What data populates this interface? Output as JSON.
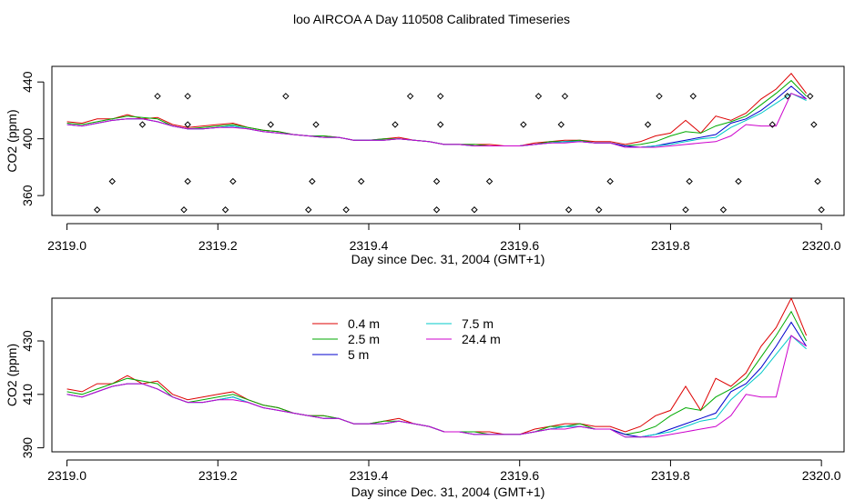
{
  "figure": {
    "title": "loo AIRCOA A  Day 110508  Calibrated Timeseries"
  },
  "chart_data": [
    {
      "type": "line",
      "title": "",
      "xlabel": "Day since Dec. 31, 2004 (GMT+1)",
      "ylabel": "CO2 (ppm)",
      "xlim": [
        2318.98,
        2320.03
      ],
      "ylim": [
        346,
        451
      ],
      "x_ticks": [
        2319.0,
        2319.2,
        2319.4,
        2319.6,
        2319.8,
        2320.0
      ],
      "x_tick_labels": [
        "2319.0",
        "2319.2",
        "2319.4",
        "2319.6",
        "2319.8",
        "2320.0"
      ],
      "y_ticks": [
        360,
        400,
        440
      ],
      "y_tick_labels": [
        "360",
        "400",
        "440"
      ],
      "grid": false,
      "legend": "none",
      "x": [
        2319.0,
        2319.02,
        2319.04,
        2319.06,
        2319.08,
        2319.1,
        2319.12,
        2319.14,
        2319.16,
        2319.18,
        2319.2,
        2319.22,
        2319.24,
        2319.26,
        2319.28,
        2319.3,
        2319.32,
        2319.34,
        2319.36,
        2319.38,
        2319.4,
        2319.42,
        2319.44,
        2319.46,
        2319.48,
        2319.5,
        2319.52,
        2319.54,
        2319.56,
        2319.58,
        2319.6,
        2319.62,
        2319.64,
        2319.66,
        2319.68,
        2319.7,
        2319.72,
        2319.74,
        2319.76,
        2319.78,
        2319.8,
        2319.82,
        2319.84,
        2319.86,
        2319.88,
        2319.9,
        2319.92,
        2319.94,
        2319.96,
        2319.98
      ],
      "series": [
        {
          "color": "#dd0000",
          "values": [
            412,
            411,
            414,
            414,
            417,
            414,
            415,
            410,
            408,
            409,
            410,
            411,
            408,
            406,
            405,
            403,
            402,
            402,
            401,
            399,
            399,
            400,
            401,
            399,
            398,
            396,
            396,
            396,
            396,
            395,
            395,
            397,
            398,
            399,
            399,
            398,
            398,
            396,
            398,
            402,
            404,
            413,
            404,
            416,
            413,
            418,
            428,
            435,
            446,
            432
          ]
        },
        {
          "color": "#00aa00",
          "values": [
            411,
            410,
            412,
            414,
            416,
            415,
            414,
            409,
            407,
            408,
            409,
            410,
            408,
            406,
            405,
            403,
            402,
            402,
            401,
            399,
            399,
            400,
            400,
            399,
            398,
            396,
            396,
            396,
            395,
            395,
            395,
            396,
            398,
            398,
            399,
            397,
            397,
            395,
            396,
            398,
            402,
            405,
            404,
            409,
            412,
            416,
            424,
            432,
            441,
            430
          ]
        },
        {
          "color": "#0000cc",
          "values": [
            410,
            409,
            411,
            413,
            414,
            414,
            412,
            409,
            407,
            407,
            408,
            409,
            407,
            405,
            404,
            403,
            402,
            401,
            401,
            399,
            399,
            399,
            400,
            399,
            398,
            396,
            396,
            395,
            395,
            395,
            395,
            396,
            397,
            398,
            398,
            397,
            397,
            395,
            394,
            395,
            397,
            399,
            401,
            403,
            411,
            414,
            420,
            428,
            437,
            428
          ]
        },
        {
          "color": "#00c8c8",
          "values": [
            410,
            409,
            411,
            413,
            414,
            414,
            412,
            409,
            407,
            407,
            408,
            409,
            407,
            405,
            404,
            403,
            402,
            401,
            401,
            399,
            399,
            399,
            400,
            399,
            398,
            396,
            396,
            395,
            395,
            395,
            395,
            396,
            397,
            398,
            398,
            397,
            397,
            394,
            394,
            395,
            396,
            398,
            400,
            401,
            408,
            413,
            418,
            425,
            432,
            427
          ]
        },
        {
          "color": "#cc00cc",
          "values": [
            410,
            409,
            411,
            413,
            414,
            414,
            412,
            409,
            407,
            407,
            408,
            408,
            407,
            405,
            404,
            403,
            402,
            401,
            401,
            399,
            399,
            399,
            400,
            399,
            398,
            396,
            396,
            395,
            395,
            395,
            395,
            396,
            397,
            397,
            398,
            397,
            397,
            394,
            394,
            394,
            395,
            396,
            397,
            398,
            402,
            410,
            409,
            409,
            432,
            428
          ]
        }
      ],
      "points": {
        "x": [
          2319.04,
          2319.06,
          2319.1,
          2319.12,
          2319.155,
          2319.16,
          2319.16,
          2319.16,
          2319.21,
          2319.22,
          2319.27,
          2319.29,
          2319.32,
          2319.325,
          2319.33,
          2319.37,
          2319.39,
          2319.435,
          2319.455,
          2319.49,
          2319.49,
          2319.495,
          2319.495,
          2319.54,
          2319.56,
          2319.605,
          2319.625,
          2319.655,
          2319.66,
          2319.665,
          2319.705,
          2319.72,
          2319.77,
          2319.785,
          2319.82,
          2319.825,
          2319.83,
          2319.87,
          2319.89,
          2319.935,
          2319.955,
          2319.985,
          2319.99,
          2319.995,
          2320.0
        ],
        "y": [
          350,
          370,
          410,
          430,
          350,
          370,
          410,
          430,
          350,
          370,
          410,
          430,
          350,
          370,
          410,
          350,
          370,
          410,
          430,
          350,
          370,
          410,
          430,
          350,
          370,
          410,
          430,
          410,
          430,
          350,
          350,
          370,
          410,
          430,
          350,
          370,
          430,
          350,
          370,
          410,
          430,
          430,
          410,
          370,
          350
        ]
      }
    },
    {
      "type": "line",
      "title": "",
      "xlabel": "Day since Dec. 31, 2004 (GMT+1)",
      "ylabel": "CO2 (ppm)",
      "xlim": [
        2318.98,
        2320.03
      ],
      "ylim": [
        388.5,
        446
      ],
      "x_ticks": [
        2319.0,
        2319.2,
        2319.4,
        2319.6,
        2319.8,
        2320.0
      ],
      "x_tick_labels": [
        "2319.0",
        "2319.2",
        "2319.4",
        "2319.6",
        "2319.8",
        "2320.0"
      ],
      "y_ticks": [
        390,
        410,
        430
      ],
      "y_tick_labels": [
        "390",
        "410",
        "430"
      ],
      "grid": false,
      "legend": "top-left",
      "x": [
        2319.0,
        2319.02,
        2319.04,
        2319.06,
        2319.08,
        2319.1,
        2319.12,
        2319.14,
        2319.16,
        2319.18,
        2319.2,
        2319.22,
        2319.24,
        2319.26,
        2319.28,
        2319.3,
        2319.32,
        2319.34,
        2319.36,
        2319.38,
        2319.4,
        2319.42,
        2319.44,
        2319.46,
        2319.48,
        2319.5,
        2319.52,
        2319.54,
        2319.56,
        2319.58,
        2319.6,
        2319.62,
        2319.64,
        2319.66,
        2319.68,
        2319.7,
        2319.72,
        2319.74,
        2319.76,
        2319.78,
        2319.8,
        2319.82,
        2319.84,
        2319.86,
        2319.88,
        2319.9,
        2319.92,
        2319.94,
        2319.96,
        2319.98
      ],
      "series": [
        {
          "name": "0.4 m",
          "color": "#dd0000",
          "values": [
            412,
            411,
            414,
            414,
            417,
            414,
            415,
            410,
            408,
            409,
            410,
            411,
            408,
            406,
            405,
            403,
            402,
            402,
            401,
            399,
            399,
            400,
            401,
            399,
            398,
            396,
            396,
            396,
            396,
            395,
            395,
            397,
            398,
            399,
            399,
            398,
            398,
            396,
            398,
            402,
            404,
            413,
            404,
            416,
            413,
            418,
            428,
            435,
            446,
            432
          ]
        },
        {
          "name": "2.5 m",
          "color": "#00aa00",
          "values": [
            411,
            410,
            412,
            414,
            416,
            415,
            414,
            409,
            407,
            408,
            409,
            410,
            408,
            406,
            405,
            403,
            402,
            402,
            401,
            399,
            399,
            400,
            400,
            399,
            398,
            396,
            396,
            396,
            395,
            395,
            395,
            396,
            398,
            398,
            399,
            397,
            397,
            395,
            396,
            398,
            402,
            405,
            404,
            409,
            412,
            416,
            424,
            432,
            441,
            430
          ]
        },
        {
          "name": "5 m",
          "color": "#0000cc",
          "values": [
            410,
            409,
            411,
            413,
            414,
            414,
            412,
            409,
            407,
            407,
            408,
            409,
            407,
            405,
            404,
            403,
            402,
            401,
            401,
            399,
            399,
            399,
            400,
            399,
            398,
            396,
            396,
            395,
            395,
            395,
            395,
            396,
            397,
            398,
            398,
            397,
            397,
            395,
            394,
            395,
            397,
            399,
            401,
            403,
            411,
            414,
            420,
            428,
            437,
            428
          ]
        },
        {
          "name": "7.5 m",
          "color": "#00c8c8",
          "values": [
            410,
            409,
            411,
            413,
            414,
            414,
            412,
            409,
            407,
            407,
            408,
            409,
            407,
            405,
            404,
            403,
            402,
            401,
            401,
            399,
            399,
            399,
            400,
            399,
            398,
            396,
            396,
            395,
            395,
            395,
            395,
            396,
            397,
            398,
            398,
            397,
            397,
            394,
            394,
            395,
            396,
            398,
            400,
            401,
            408,
            413,
            418,
            425,
            432,
            427
          ]
        },
        {
          "name": "24.4 m",
          "color": "#cc00cc",
          "values": [
            410,
            409,
            411,
            413,
            414,
            414,
            412,
            409,
            407,
            407,
            408,
            408,
            407,
            405,
            404,
            403,
            402,
            401,
            401,
            399,
            399,
            399,
            400,
            399,
            398,
            396,
            396,
            395,
            395,
            395,
            395,
            396,
            397,
            397,
            398,
            397,
            397,
            394,
            394,
            394,
            395,
            396,
            397,
            398,
            402,
            410,
            409,
            409,
            432,
            428
          ]
        }
      ]
    }
  ]
}
